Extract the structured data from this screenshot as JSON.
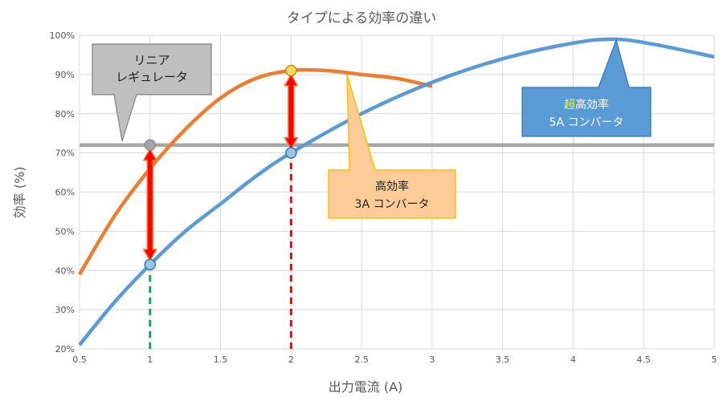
{
  "chart_data": {
    "type": "line",
    "title": "タイプによる効率の違い",
    "xlabel": "出力電流 (A)",
    "ylabel": "効率 (%)",
    "xlim": [
      0.5,
      5
    ],
    "ylim": [
      20,
      100
    ],
    "x_ticks": [
      "0.5",
      "1",
      "1.5",
      "2",
      "2.5",
      "3",
      "3.5",
      "4",
      "4.5",
      "5"
    ],
    "y_ticks": [
      "20%",
      "30%",
      "40%",
      "50%",
      "60%",
      "70%",
      "80%",
      "90%",
      "100%"
    ],
    "grid": true,
    "series": [
      {
        "name": "リニアレギュレータ",
        "color": "#A6A6A6",
        "x": [
          0.5,
          5
        ],
        "y": [
          72,
          72
        ]
      },
      {
        "name": "高効率3A コンバータ",
        "color": "#ED7D31",
        "x": [
          0.5,
          0.75,
          1.0,
          1.25,
          1.5,
          1.75,
          2.0,
          2.25,
          2.5,
          2.75,
          3.0
        ],
        "y": [
          39,
          54,
          66,
          76,
          84,
          89,
          91,
          91,
          90,
          89,
          87
        ]
      },
      {
        "name": "超高効率5A コンバータ",
        "color": "#5B9BD5",
        "x": [
          0.5,
          0.75,
          1.0,
          1.25,
          1.5,
          1.75,
          2.0,
          2.5,
          3.0,
          3.5,
          4.0,
          4.3,
          4.6,
          5.0
        ],
        "y": [
          21,
          32,
          41.5,
          50,
          57,
          64,
          70,
          80,
          88,
          94,
          98,
          99,
          97.5,
          94.5
        ]
      }
    ],
    "markers": [
      {
        "x": 1,
        "y": 72,
        "fill": "#A6A6A6",
        "stroke": "#8C8C8C"
      },
      {
        "x": 1,
        "y": 41.5,
        "fill": "#9DC3E6",
        "stroke": "#2E75B6"
      },
      {
        "x": 2,
        "y": 91,
        "fill": "#FFD966",
        "stroke": "#C58F00"
      },
      {
        "x": 2,
        "y": 70,
        "fill": "#9DC3E6",
        "stroke": "#2E75B6"
      }
    ],
    "arrows": [
      {
        "x": 1,
        "y1": 42.5,
        "y2": 71
      },
      {
        "x": 2,
        "y1": 71,
        "y2": 90
      }
    ],
    "dashed_drops": [
      {
        "x": 1,
        "y_from": 20,
        "y_to": 41.5,
        "color": "#00B050"
      },
      {
        "x": 2,
        "y_from": 20,
        "y_to": 70,
        "color": "#FF0000"
      }
    ],
    "annotations": {
      "linear": {
        "line1": "リニア",
        "line2": "レギュレータ"
      },
      "high3a": {
        "line1": "高効率",
        "line2": "3A コンバータ"
      },
      "ultra5a": {
        "prefix": "超",
        "line1": "高効率",
        "line2": "5A コンバータ",
        "prefix_color": "#FFFF00"
      }
    }
  }
}
